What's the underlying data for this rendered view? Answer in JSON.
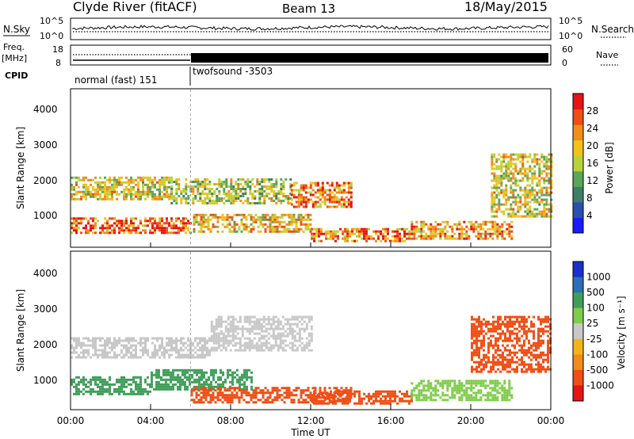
{
  "header": {
    "title": "Clyde River (fitACF)",
    "beam": "Beam 13",
    "date": "18/May/2015"
  },
  "noise_panel": {
    "left_label": "N.Sky",
    "right_label": "N.Search",
    "ticks_left": [
      "10^5",
      "10^0"
    ],
    "ticks_right": [
      "10^5",
      "10^0"
    ]
  },
  "freq_panel": {
    "left_label": "Freq.",
    "left_unit": "[MHz]",
    "right_label": "Nave",
    "ticks_left": [
      "18",
      "8"
    ],
    "ticks_right": [
      "60",
      "0"
    ]
  },
  "cpid": {
    "label": "CPID",
    "segments": [
      {
        "name": "normal (fast) 151",
        "start": 0,
        "end": 6
      },
      {
        "name": "twofsound -3503",
        "start": 6,
        "end": 24
      }
    ]
  },
  "xaxis": {
    "label": "Time UT",
    "ticks": [
      "00:00",
      "04:00",
      "08:00",
      "12:00",
      "16:00",
      "20:00",
      "00:00"
    ]
  },
  "colors": {
    "power": [
      "#1a1aff",
      "#2b4fb0",
      "#3f7f6a",
      "#5aa65a",
      "#b8d23a",
      "#f2c21a",
      "#f28c1a",
      "#f04e14",
      "#e61414"
    ],
    "velocity": [
      "#e61414",
      "#f04e14",
      "#f28c1a",
      "#f2b41a",
      "#c8c8c8",
      "#c8c8c8",
      "#7fcc4a",
      "#3f9f5a",
      "#2b6fb8",
      "#1a2fcc"
    ]
  },
  "chart_data": [
    {
      "type": "heatmap",
      "name": "power",
      "ylabel": "Slant Range [km]",
      "xlabel": "",
      "ylim": [
        180,
        4600
      ],
      "yticks": [
        "1000",
        "2000",
        "3000",
        "4000"
      ],
      "xlim": [
        0,
        24
      ],
      "colorbar_label": "Power [dB]",
      "colorbar_ticks": [
        "4",
        "8",
        "12",
        "16",
        "20",
        "24",
        "28"
      ],
      "bands": [
        {
          "x": [
            0,
            5
          ],
          "y": [
            1500,
            2150
          ],
          "value": 18
        },
        {
          "x": [
            5,
            11
          ],
          "y": [
            1400,
            2100
          ],
          "value": 16
        },
        {
          "x": [
            0,
            6
          ],
          "y": [
            550,
            1000
          ],
          "value": 26
        },
        {
          "x": [
            6,
            12
          ],
          "y": [
            600,
            1100
          ],
          "value": 20
        },
        {
          "x": [
            11,
            14
          ],
          "y": [
            1300,
            2000
          ],
          "value": 24
        },
        {
          "x": [
            12,
            17
          ],
          "y": [
            350,
            700
          ],
          "value": 24
        },
        {
          "x": [
            17,
            22
          ],
          "y": [
            400,
            900
          ],
          "value": 22
        },
        {
          "x": [
            21,
            24
          ],
          "y": [
            1000,
            2800
          ],
          "value": 18
        }
      ]
    },
    {
      "type": "heatmap",
      "name": "velocity",
      "ylabel": "Slant Range [km]",
      "xlabel": "Time UT",
      "ylim": [
        180,
        4600
      ],
      "yticks": [
        "1000",
        "2000",
        "3000",
        "4000"
      ],
      "xlim": [
        0,
        24
      ],
      "colorbar_label": "Velocity [m s⁻¹]",
      "colorbar_ticks": [
        "1000",
        "500",
        "100",
        "25",
        "-25",
        "-100",
        "-500",
        "-1000"
      ],
      "bands": [
        {
          "x": [
            0,
            7
          ],
          "y": [
            1600,
            2200
          ],
          "value": 0
        },
        {
          "x": [
            7,
            12
          ],
          "y": [
            1800,
            2800
          ],
          "value": 0
        },
        {
          "x": [
            0,
            4
          ],
          "y": [
            600,
            1100
          ],
          "value": 300
        },
        {
          "x": [
            4,
            9
          ],
          "y": [
            700,
            1300
          ],
          "value": 150
        },
        {
          "x": [
            6,
            14
          ],
          "y": [
            350,
            800
          ],
          "value": -200
        },
        {
          "x": [
            12,
            17
          ],
          "y": [
            300,
            700
          ],
          "value": -150
        },
        {
          "x": [
            17,
            22
          ],
          "y": [
            400,
            1000
          ],
          "value": 50
        },
        {
          "x": [
            20,
            24
          ],
          "y": [
            1200,
            2800
          ],
          "value": -300
        }
      ]
    }
  ]
}
